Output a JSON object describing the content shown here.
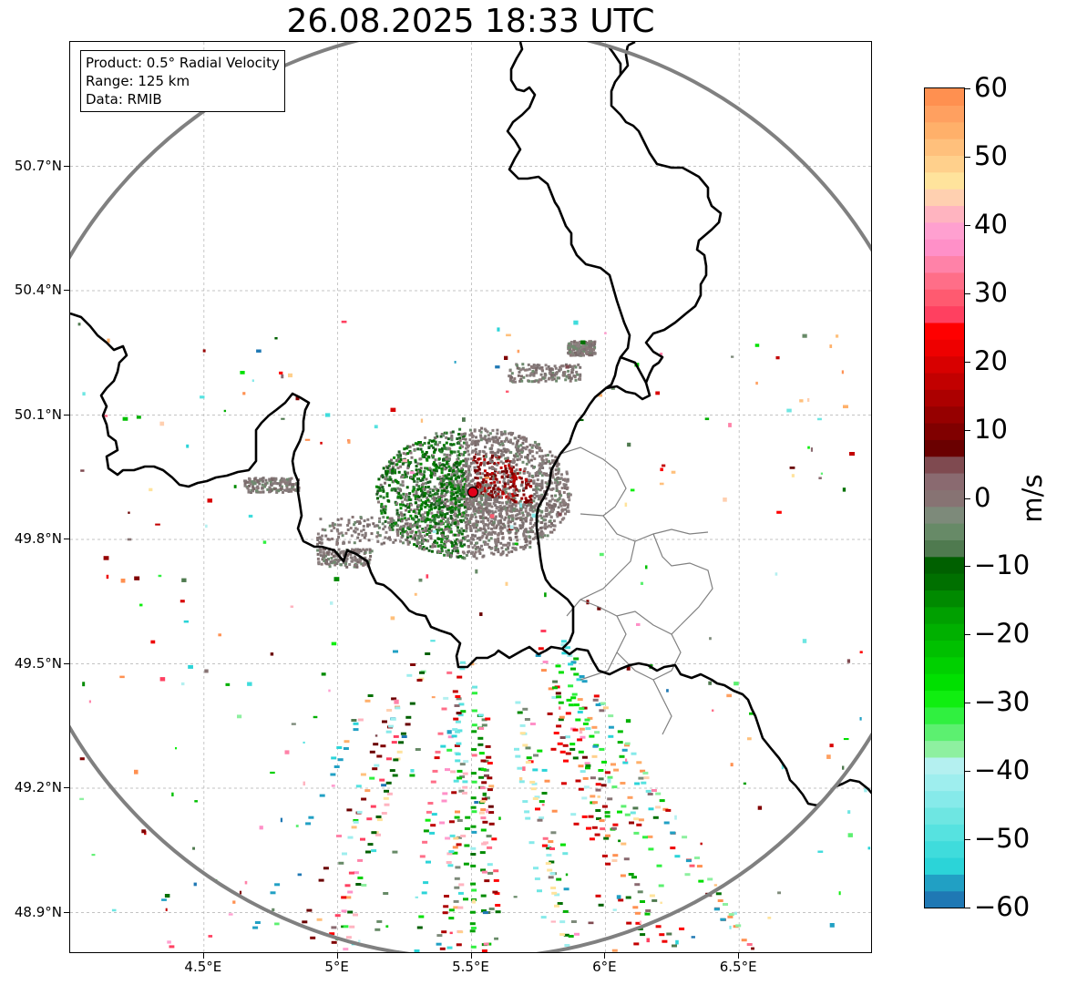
{
  "title": "26.08.2025 18:33 UTC",
  "info_box": {
    "product": "Product: 0.5° Radial Velocity",
    "range": "Range: 125 km",
    "data": "Data: RMIB"
  },
  "map": {
    "lon_range": [
      4.0,
      7.0
    ],
    "lat_range": [
      48.8,
      51.0
    ],
    "lat_ticks": [
      {
        "value": 50.7,
        "label": "50.7°N"
      },
      {
        "value": 50.4,
        "label": "50.4°N"
      },
      {
        "value": 50.1,
        "label": "50.1°N"
      },
      {
        "value": 49.8,
        "label": "49.8°N"
      },
      {
        "value": 49.5,
        "label": "49.5°N"
      },
      {
        "value": 49.2,
        "label": "49.2°N"
      },
      {
        "value": 48.9,
        "label": "48.9°N"
      }
    ],
    "lon_ticks": [
      {
        "value": 4.5,
        "label": "4.5°E"
      },
      {
        "value": 5.0,
        "label": "5°E"
      },
      {
        "value": 5.5,
        "label": "5.5°E"
      },
      {
        "value": 6.0,
        "label": "6°E"
      },
      {
        "value": 6.5,
        "label": "6.5°E"
      }
    ],
    "radar_site": {
      "lon": 5.505,
      "lat": 49.914
    },
    "range_ring_km": 125,
    "colors": {
      "grid": "#b0b0b0",
      "borders": "#000000",
      "admin_lines": "#808080",
      "range_ring": "#808080",
      "site_marker": "#e0001a"
    }
  },
  "colorbar": {
    "label": "m/s",
    "min": -60,
    "max": 60,
    "ticks": [
      {
        "value": 60,
        "label": "60"
      },
      {
        "value": 50,
        "label": "50"
      },
      {
        "value": 40,
        "label": "40"
      },
      {
        "value": 30,
        "label": "30"
      },
      {
        "value": 20,
        "label": "20"
      },
      {
        "value": 10,
        "label": "10"
      },
      {
        "value": 0,
        "label": "0"
      },
      {
        "value": -10,
        "label": "−10"
      },
      {
        "value": -20,
        "label": "−20"
      },
      {
        "value": -30,
        "label": "−30"
      },
      {
        "value": -40,
        "label": "−40"
      },
      {
        "value": -50,
        "label": "−50"
      },
      {
        "value": -60,
        "label": "−60"
      }
    ],
    "colors": [
      "#1f78b4",
      "#21a0c4",
      "#2bd4d8",
      "#3fdcdc",
      "#56e2e0",
      "#6ee6e2",
      "#86eaea",
      "#9eeeee",
      "#b4f0f0",
      "#8ef0a0",
      "#5cf070",
      "#30f040",
      "#10ee10",
      "#00e000",
      "#00d000",
      "#00c000",
      "#00b000",
      "#00a000",
      "#008a00",
      "#007000",
      "#006000",
      "#4f7a4f",
      "#678a67",
      "#7d8a7a",
      "#877373",
      "#8a6a70",
      "#7f4a50",
      "#6a0000",
      "#800000",
      "#960000",
      "#ac0000",
      "#c20000",
      "#d80000",
      "#ee0000",
      "#ff0000",
      "#ff4060",
      "#ff5a70",
      "#ff6e88",
      "#ff82a8",
      "#ff90c8",
      "#ffa0d0",
      "#ffb4c0",
      "#ffd0b0",
      "#ffe39c",
      "#ffd08c",
      "#ffc07c",
      "#ffb06a",
      "#ffa060",
      "#ff9050"
    ]
  }
}
